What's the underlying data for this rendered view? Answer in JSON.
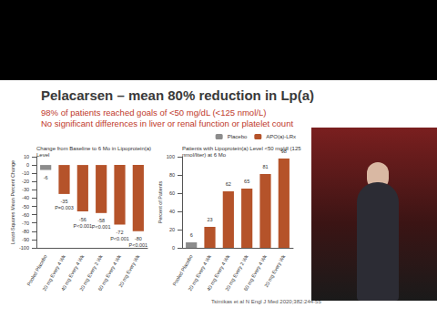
{
  "slide": {
    "title": "Pelacarsen – mean 80% reduction in Lp(a)",
    "subtitle": [
      "98% of patients reached goals of <50 mg/dL (<125 nmol/L)",
      "No significant differences in liver or renal function or platelet count"
    ],
    "citation": "Tsimikas et al N Engl J Med 2020;382:244-55"
  },
  "chart_data": [
    {
      "type": "bar",
      "title": "Change from Baseline to 6 Mo in Lipoprotein(a) Level",
      "ylabel": "Least-Squares Mean Percent Change",
      "categories": [
        "Pooled Placebo",
        "20 mg Every 4 Wk",
        "40 mg Every 4 Wk",
        "20 mg Every 2 Wk",
        "60 mg Every 4 Wk",
        "20 mg Every Wk"
      ],
      "series": [
        {
          "name": "Placebo",
          "color": "#8c8c8c",
          "values": [
            -6,
            null,
            null,
            null,
            null,
            null
          ]
        },
        {
          "name": "APO(a)-LRx",
          "color": "#b5532a",
          "values": [
            null,
            -35,
            -56,
            -58,
            -72,
            -80
          ]
        }
      ],
      "p_values": [
        null,
        "P=0.003",
        "P<0.001",
        "P<0.001",
        "P<0.001",
        "P<0.001"
      ],
      "ylim": [
        -100,
        10
      ],
      "yticks": [
        -100,
        -90,
        -80,
        -70,
        -60,
        -50,
        -40,
        -30,
        -20,
        -10,
        0,
        10
      ],
      "grid": false,
      "data_labels": true
    },
    {
      "type": "bar",
      "title": "Patients with Lipoprotein(a) Level <50 mg/dl (125 nmol/liter) at 6 Mo",
      "ylabel": "Percent of Patients",
      "categories": [
        "Pooled Placebo",
        "20 mg Every 4 Wk",
        "40 mg Every 4 Wk",
        "20 mg Every 2 Wk",
        "60 mg Every 4 Wk",
        "20 mg Every Wk"
      ],
      "series": [
        {
          "name": "Placebo",
          "color": "#8c8c8c",
          "values": [
            6,
            null,
            null,
            null,
            null,
            null
          ]
        },
        {
          "name": "APO(a)-LRx",
          "color": "#b5532a",
          "values": [
            null,
            23,
            62,
            65,
            81,
            98
          ]
        }
      ],
      "ylim": [
        0,
        100
      ],
      "yticks": [
        0,
        20,
        40,
        60,
        80,
        100
      ],
      "grid": false,
      "data_labels": true,
      "legend": "top-right"
    }
  ]
}
